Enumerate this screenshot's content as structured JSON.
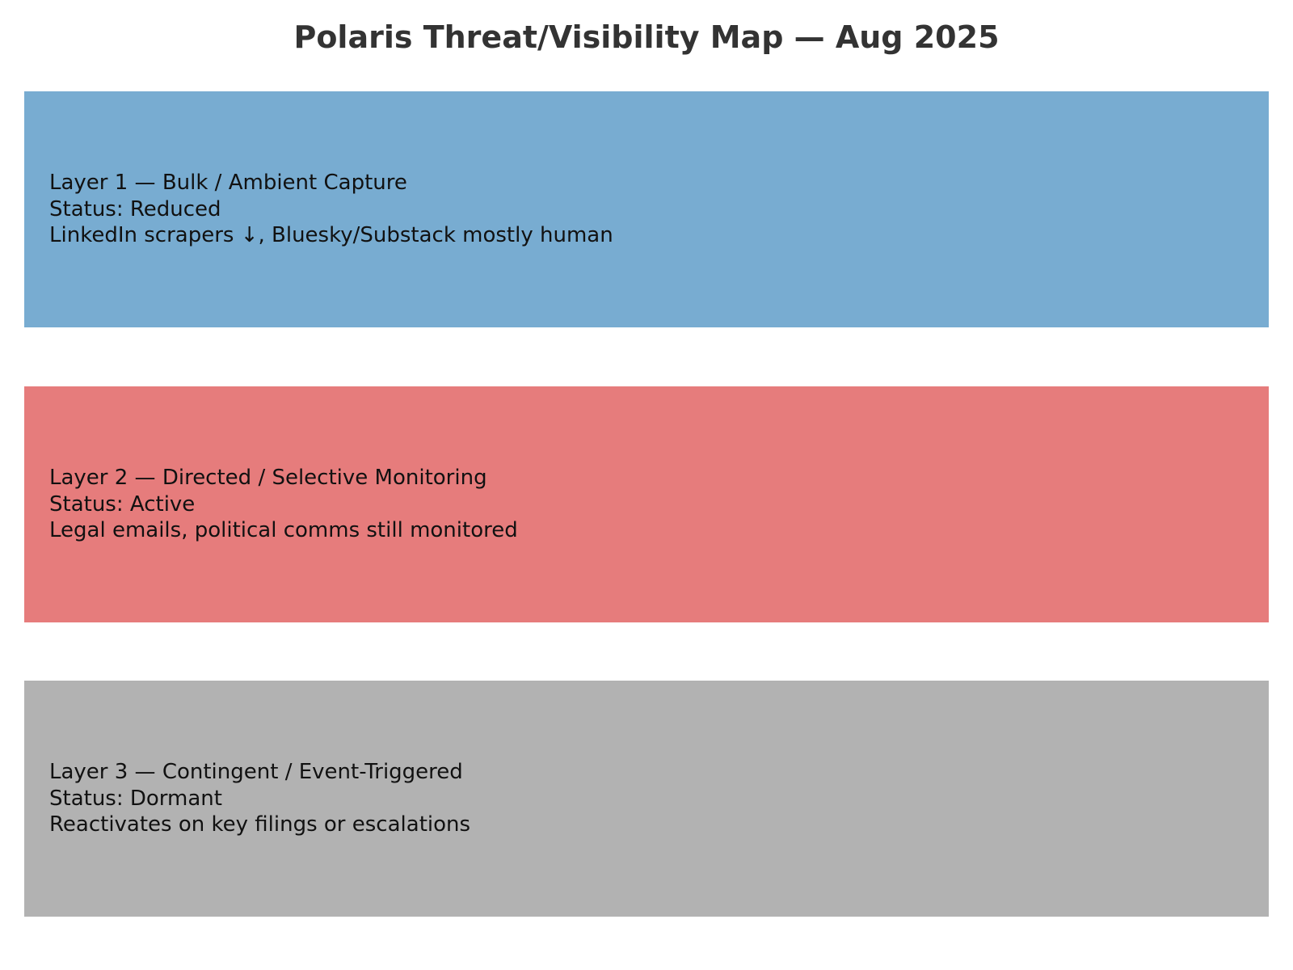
{
  "title": "Polaris Threat/Visibility Map — Aug 2025",
  "layers": [
    {
      "heading": "Layer 1 — Bulk / Ambient Capture",
      "status": "Status: Reduced",
      "note": "LinkedIn scrapers ↓, Bluesky/Substack mostly human",
      "color": "#78acd1"
    },
    {
      "heading": "Layer 2 — Directed / Selective Monitoring",
      "status": "Status: Active",
      "note": "Legal emails, political comms still monitored",
      "color": "#e67c7c"
    },
    {
      "heading": "Layer 3 — Contingent / Event-Triggered",
      "status": "Status: Dormant",
      "note": "Reactivates on key filings or escalations",
      "color": "#b2b2b2"
    }
  ]
}
